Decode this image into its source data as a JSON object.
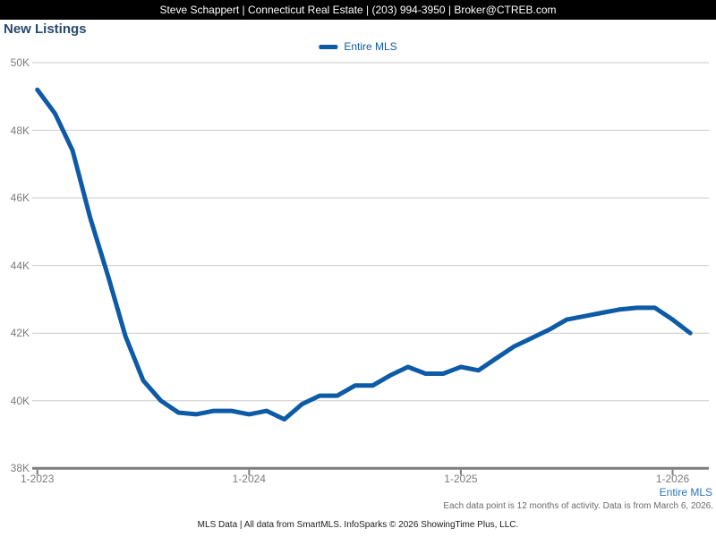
{
  "header": {
    "contact_bar": "Steve Schappert | Connecticut Real Estate | (203) 994-3950 | Broker@CTREB.com"
  },
  "page_title": "New Listings",
  "legend": {
    "label": "Entire MLS",
    "color": "#0d5aa6"
  },
  "footer": {
    "series_link": "Entire MLS",
    "note": "Each data point is 12 months of activity. Data is from March 6, 2026.",
    "attribution": "MLS Data | All data from SmartMLS. InfoSparks © 2026 ShowingTime Plus, LLC."
  },
  "colors": {
    "line": "#0d5aa6",
    "title": "#27496d",
    "link_blue": "#2e74b5",
    "axis_label": "#7a7a7a",
    "gridline": "#c9c9c9",
    "axis": "#7d7d7d",
    "topbar_bg": "#000000",
    "topbar_text": "#ffffff"
  },
  "chart_data": {
    "type": "line",
    "title": "New Listings",
    "x": [
      "1-2023",
      "2-2023",
      "3-2023",
      "4-2023",
      "5-2023",
      "6-2023",
      "7-2023",
      "8-2023",
      "9-2023",
      "10-2023",
      "11-2023",
      "12-2023",
      "1-2024",
      "2-2024",
      "3-2024",
      "4-2024",
      "5-2024",
      "6-2024",
      "7-2024",
      "8-2024",
      "9-2024",
      "10-2024",
      "11-2024",
      "12-2024",
      "1-2025",
      "2-2025",
      "3-2025",
      "4-2025",
      "5-2025",
      "6-2025",
      "7-2025",
      "8-2025",
      "9-2025",
      "10-2025",
      "11-2025",
      "12-2025",
      "1-2026",
      "2-2026"
    ],
    "series": [
      {
        "name": "Entire MLS",
        "color": "#0d5aa6",
        "values": [
          49200,
          48500,
          47400,
          45400,
          43700,
          41900,
          40600,
          40000,
          39650,
          39600,
          39700,
          39700,
          39600,
          39700,
          39450,
          39900,
          40150,
          40150,
          40450,
          40450,
          40750,
          41000,
          40800,
          40800,
          41000,
          40900,
          41250,
          41600,
          41850,
          42100,
          42400,
          42500,
          42600,
          42700,
          42750,
          42750,
          42400,
          42000
        ]
      }
    ],
    "x_tick_labels": [
      "1-2023",
      "1-2024",
      "1-2025",
      "1-2026"
    ],
    "x_tick_indices": [
      0,
      12,
      24,
      36
    ],
    "y_ticks": [
      {
        "label": "50K",
        "value": 50000
      },
      {
        "label": "48K",
        "value": 48000
      },
      {
        "label": "46K",
        "value": 46000
      },
      {
        "label": "44K",
        "value": 44000
      },
      {
        "label": "42K",
        "value": 42000
      },
      {
        "label": "40K",
        "value": 40000
      },
      {
        "label": "38K",
        "value": 38000
      }
    ],
    "ylim": [
      38000,
      50000
    ],
    "grid": true,
    "legend_position": "top",
    "note": "Each data point is 12 months of activity. Data is from March 6, 2026."
  }
}
